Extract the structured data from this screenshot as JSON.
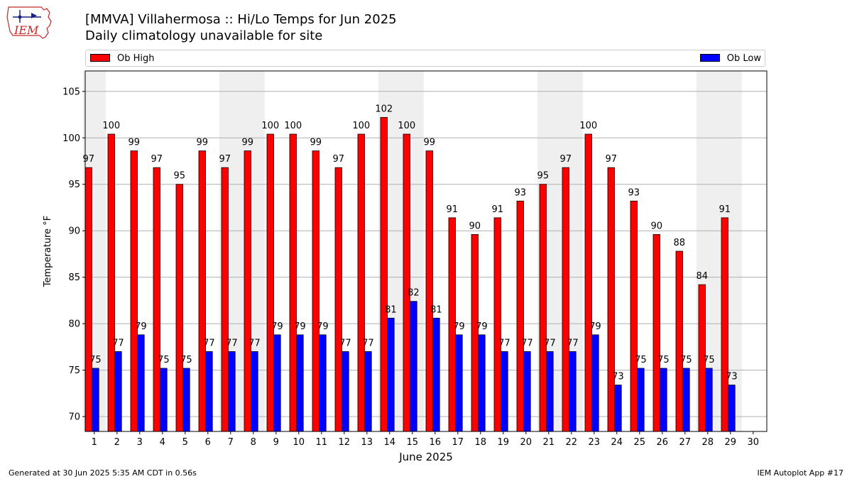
{
  "header": {
    "logo_text": "IEM",
    "title": "[MMVA] Villahermosa :: Hi/Lo Temps for Jun 2025",
    "subtitle": "Daily climatology unavailable for site"
  },
  "footer": {
    "left": "Generated at 30 Jun 2025 5:35 AM CDT in 0.56s",
    "right": "IEM Autoplot App #17"
  },
  "colors": {
    "high": "#ff0000",
    "low": "#0000ff",
    "weekend_band": "#efefef",
    "grid": "#b0b0b0"
  },
  "chart_data": {
    "type": "bar",
    "xlabel": "June 2025",
    "ylabel": "Temperature °F",
    "ylim": [
      68.4,
      107.2
    ],
    "yticks": [
      70,
      75,
      80,
      85,
      90,
      95,
      100,
      105
    ],
    "grid": "horizontal",
    "legend_placement": "top",
    "categories": [
      "1",
      "2",
      "3",
      "4",
      "5",
      "6",
      "7",
      "8",
      "9",
      "10",
      "11",
      "12",
      "13",
      "14",
      "15",
      "16",
      "17",
      "18",
      "19",
      "20",
      "21",
      "22",
      "23",
      "24",
      "25",
      "26",
      "27",
      "28",
      "29",
      "30"
    ],
    "weekend_days": [
      1,
      7,
      8,
      14,
      15,
      21,
      22,
      28,
      29
    ],
    "series": [
      {
        "name": "Ob High",
        "color": "#ff0000",
        "values": [
          96.8,
          100.4,
          98.6,
          96.8,
          95.0,
          98.6,
          96.8,
          98.6,
          100.4,
          100.4,
          98.6,
          96.8,
          100.4,
          102.2,
          100.4,
          98.6,
          91.4,
          89.6,
          91.4,
          93.2,
          95.0,
          96.8,
          100.4,
          96.8,
          93.2,
          89.6,
          87.8,
          84.2,
          91.4,
          null
        ],
        "labels": [
          "97",
          "100",
          "99",
          "97",
          "95",
          "99",
          "97",
          "99",
          "100",
          "100",
          "99",
          "97",
          "100",
          "102",
          "100",
          "99",
          "91",
          "90",
          "91",
          "93",
          "95",
          "97",
          "100",
          "97",
          "93",
          "90",
          "88",
          "84",
          "91",
          ""
        ]
      },
      {
        "name": "Ob Low",
        "color": "#0000ff",
        "values": [
          75.2,
          77.0,
          78.8,
          75.2,
          75.2,
          77.0,
          77.0,
          77.0,
          78.8,
          78.8,
          78.8,
          77.0,
          77.0,
          80.6,
          82.4,
          80.6,
          78.8,
          78.8,
          77.0,
          77.0,
          77.0,
          77.0,
          78.8,
          73.4,
          75.2,
          75.2,
          75.2,
          75.2,
          73.4,
          null
        ],
        "labels": [
          "75",
          "77",
          "79",
          "75",
          "75",
          "77",
          "77",
          "77",
          "79",
          "79",
          "79",
          "77",
          "77",
          "81",
          "82",
          "81",
          "79",
          "79",
          "77",
          "77",
          "77",
          "77",
          "79",
          "73",
          "75",
          "75",
          "75",
          "75",
          "73",
          ""
        ]
      }
    ]
  }
}
